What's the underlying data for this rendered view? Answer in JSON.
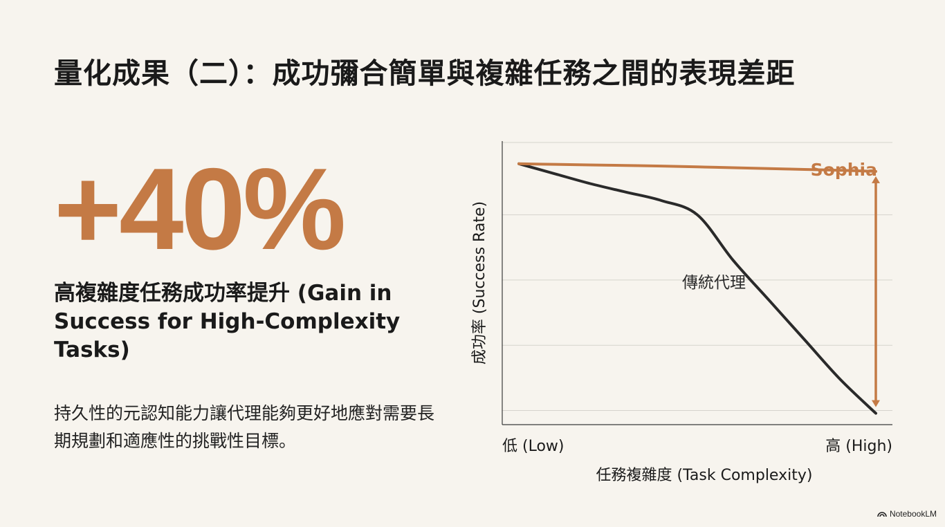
{
  "title": "量化成果（二）：成功彌合簡單與複雜任務之間的表現差距",
  "stat": {
    "value": "+40%",
    "label": "高複雜度任務成功率提升 (Gain in Success for High-Complexity Tasks)",
    "description": "持久性的元認知能力讓代理能夠更好地應對需要長期規劃和適應性的挑戰性目標。"
  },
  "colors": {
    "accent": "#c47a45",
    "baseline_line": "#2a2a2a",
    "grid": "#d6d3cc"
  },
  "chart_data": {
    "type": "line",
    "title": "",
    "xlabel": "任務複雜度 (Task Complexity)",
    "ylabel": "成功率 (Success Rate)",
    "x_tick_labels": [
      "低 (Low)",
      "高 (High)"
    ],
    "x": [
      0,
      0.1,
      0.2,
      0.3,
      0.4,
      0.5,
      0.6,
      0.7,
      0.8,
      0.9,
      1.0
    ],
    "ylim": [
      0,
      1
    ],
    "grid": true,
    "series": [
      {
        "name": "Sophia",
        "values": [
          0.92,
          0.918,
          0.916,
          0.914,
          0.912,
          0.909,
          0.906,
          0.903,
          0.9,
          0.897,
          0.893
        ]
      },
      {
        "name": "傳統代理",
        "values": [
          0.92,
          0.885,
          0.85,
          0.82,
          0.79,
          0.74,
          0.58,
          0.44,
          0.3,
          0.16,
          0.04
        ]
      }
    ],
    "annotation": {
      "type": "double-arrow",
      "at_x": 1.0,
      "from": 0.893,
      "to": 0.04
    }
  },
  "badge": {
    "label": "NotebookLM",
    "icon": "notebooklm-logo-icon"
  }
}
